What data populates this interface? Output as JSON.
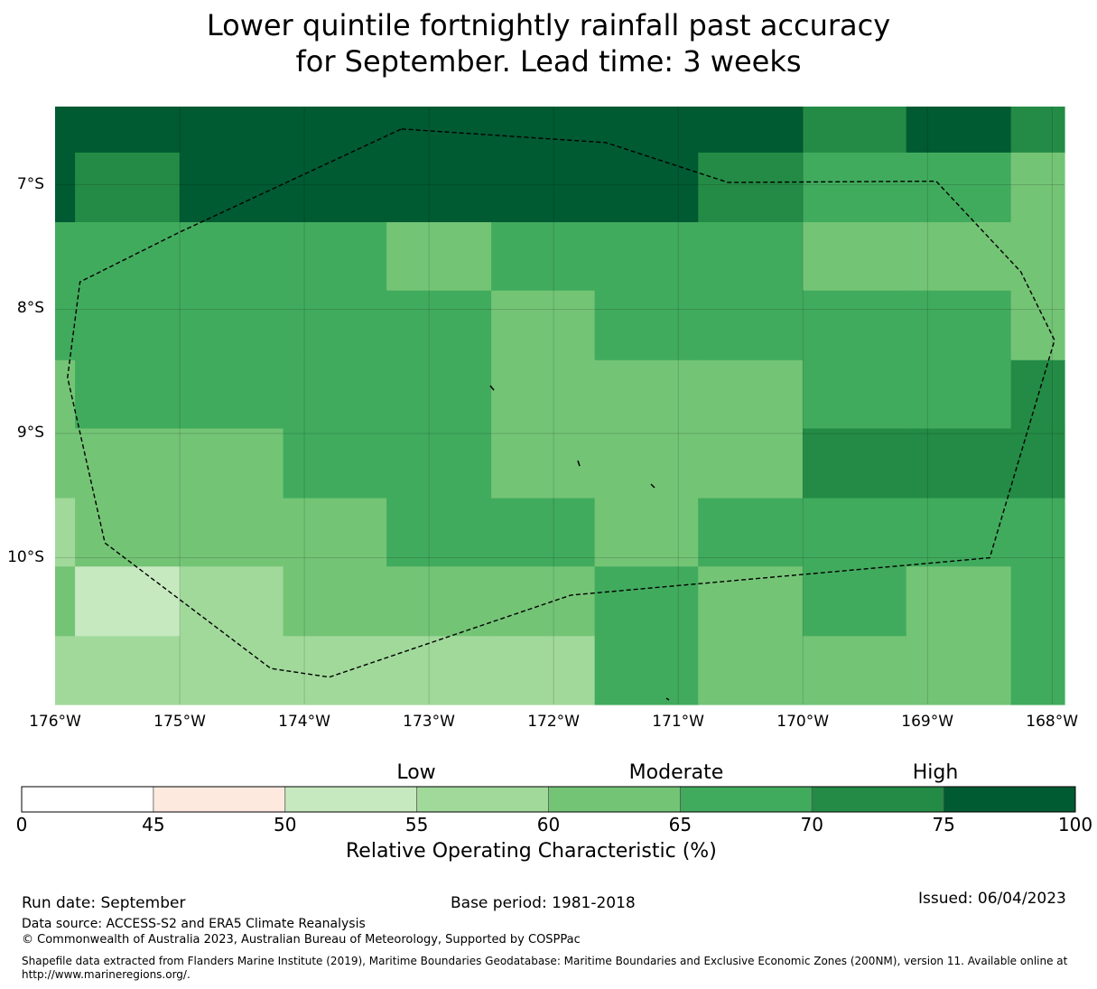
{
  "title_line1": "Lower quintile fortnightly rainfall past accuracy",
  "title_line2": "for September. Lead time: 3 weeks",
  "chart_data": {
    "type": "heatmap",
    "title": "Lower quintile fortnightly rainfall past accuracy for September. Lead time: 3 weeks",
    "x_ticks": [
      "176°W",
      "175°W",
      "174°W",
      "173°W",
      "172°W",
      "171°W",
      "170°W",
      "169°W",
      "168°W"
    ],
    "y_ticks": [
      "7°S",
      "8°S",
      "9°S",
      "10°S"
    ],
    "x_range_deg": [
      -176.0,
      -167.9
    ],
    "y_range_deg": [
      -11.18,
      -6.37
    ],
    "colorbar": {
      "label": "Relative Operating Characteristic (%)",
      "boundaries": [
        0,
        45,
        50,
        55,
        60,
        65,
        70,
        75,
        100
      ],
      "tick_labels": [
        "0",
        "45",
        "50",
        "55",
        "60",
        "65",
        "70",
        "75",
        "100"
      ],
      "colors": [
        "#ffffff",
        "#fee9df",
        "#c7e9c0",
        "#a1d99b",
        "#74c476",
        "#41ab5d",
        "#238b45",
        "#005a32"
      ],
      "category_labels": [
        "Low",
        "Moderate",
        "High"
      ]
    },
    "grid_cells_note": "Cell values are ROC class indices (0 = 0-45, 1 = 45-50, 2 = 50-55, 3 = 55-60, 4 = 60-65, 5 = 65-70, 6 = 70-75, 7 = 75-100)",
    "grid_x_edges_deg": [
      -176.0,
      -175.84,
      -175.0,
      -174.17,
      -173.34,
      -172.5,
      -171.67,
      -170.84,
      -170.0,
      -169.17,
      -168.33,
      -167.9
    ],
    "grid_y_edges_deg": [
      -6.37,
      -6.74,
      -7.3,
      -7.85,
      -8.41,
      -8.96,
      -9.52,
      -10.07,
      -10.63,
      -11.18
    ],
    "grid_values": [
      [
        7,
        7,
        7,
        7,
        7,
        7,
        7,
        7,
        6,
        7,
        6
      ],
      [
        7,
        6,
        7,
        7,
        7,
        7,
        7,
        6,
        5,
        5,
        4
      ],
      [
        5,
        5,
        5,
        5,
        4,
        5,
        5,
        5,
        4,
        4,
        4
      ],
      [
        5,
        5,
        5,
        5,
        5,
        4,
        5,
        5,
        5,
        5,
        4
      ],
      [
        4,
        5,
        5,
        5,
        5,
        4,
        4,
        4,
        5,
        5,
        6
      ],
      [
        4,
        4,
        4,
        5,
        5,
        4,
        4,
        4,
        6,
        6,
        6
      ],
      [
        3,
        4,
        4,
        4,
        5,
        5,
        4,
        5,
        5,
        5,
        5
      ],
      [
        4,
        2,
        3,
        4,
        4,
        4,
        5,
        4,
        5,
        4,
        5
      ],
      [
        3,
        3,
        3,
        3,
        3,
        3,
        5,
        4,
        4,
        4,
        5
      ]
    ],
    "eez_boundary_deg": [
      [
        -173.22,
        -6.55
      ],
      [
        -171.58,
        -6.66
      ],
      [
        -170.6,
        -6.98
      ],
      [
        -168.93,
        -6.97
      ],
      [
        -168.25,
        -7.7
      ],
      [
        -167.98,
        -8.25
      ],
      [
        -168.5,
        -10.0
      ],
      [
        -171.86,
        -10.3
      ],
      [
        -173.8,
        -10.96
      ],
      [
        -174.27,
        -10.89
      ],
      [
        -175.6,
        -9.88
      ],
      [
        -175.9,
        -8.55
      ],
      [
        -175.8,
        -7.78
      ],
      [
        -175.0,
        -7.38
      ],
      [
        -173.22,
        -6.55
      ]
    ]
  },
  "footer": {
    "run_date": "Run date: September",
    "base_period": "Base period: 1981-2018",
    "issued": "Issued: 06/04/2023",
    "data_source": "Data source: ACCESS-S2 and ERA5 Climate Reanalysis",
    "copyright": "© Commonwealth of Australia 2023, Australian Bureau of Meteorology, Supported by COSPPac",
    "shapefile_line1": "Shapefile data extracted from Flanders Marine Institute (2019), Maritime Boundaries Geodatabase: Maritime Boundaries and Exclusive Economic Zones (200NM), version 11. Available online at",
    "shapefile_line2": "http://www.marineregions.org/."
  }
}
